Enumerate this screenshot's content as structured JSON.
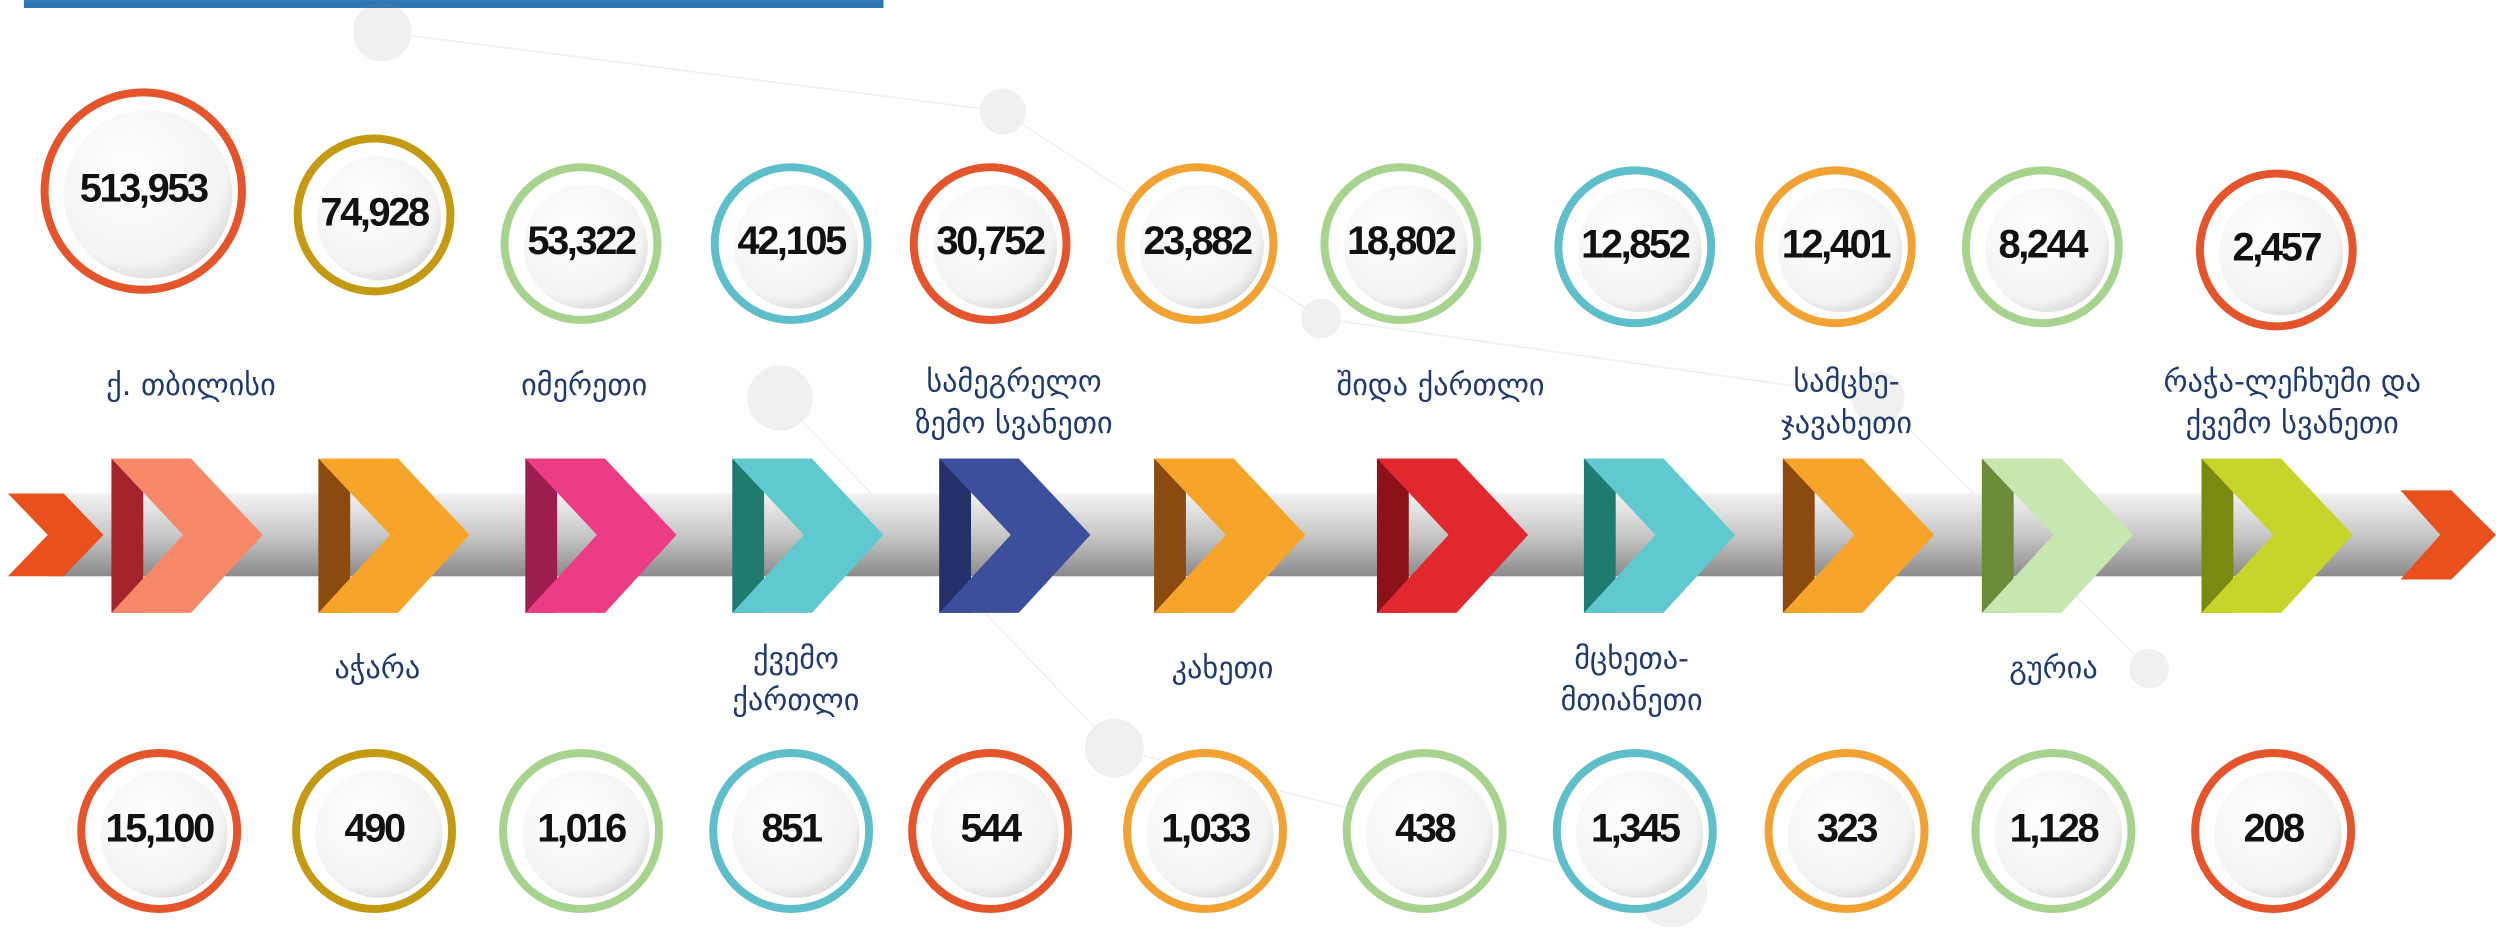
{
  "regions": [
    {
      "name": [
        "ქ. თბილისი"
      ],
      "top": "513,953",
      "bottom": "15,100"
    },
    {
      "name": [
        "აჭარა"
      ],
      "top": "74,928",
      "bottom": "490"
    },
    {
      "name": [
        "იმერეთი"
      ],
      "top": "53,322",
      "bottom": "1,016"
    },
    {
      "name": [
        "ქვემო",
        "ქართლი"
      ],
      "top": "42,105",
      "bottom": "851"
    },
    {
      "name": [
        "სამეგრელო",
        "ზემო სვანეთი"
      ],
      "top": "30,752",
      "bottom": "544"
    },
    {
      "name": [
        "კახეთი"
      ],
      "top": "23,882",
      "bottom": "1,033"
    },
    {
      "name": [
        "შიდა ქართლი"
      ],
      "top": "18,802",
      "bottom": "438"
    },
    {
      "name": [
        "მცხეთა-",
        "მთიანეთი"
      ],
      "top": "12,852",
      "bottom": "1,345"
    },
    {
      "name": [
        "სამცხე-",
        "ჯავახეთი"
      ],
      "top": "12,401",
      "bottom": "323"
    },
    {
      "name": [
        "გურია"
      ],
      "top": "8,244",
      "bottom": "1,128"
    },
    {
      "name": [
        "რაჭა-ლეჩხუმი და",
        "ქვემო სვანეთი"
      ],
      "top": "2,457",
      "bottom": "208"
    }
  ]
}
